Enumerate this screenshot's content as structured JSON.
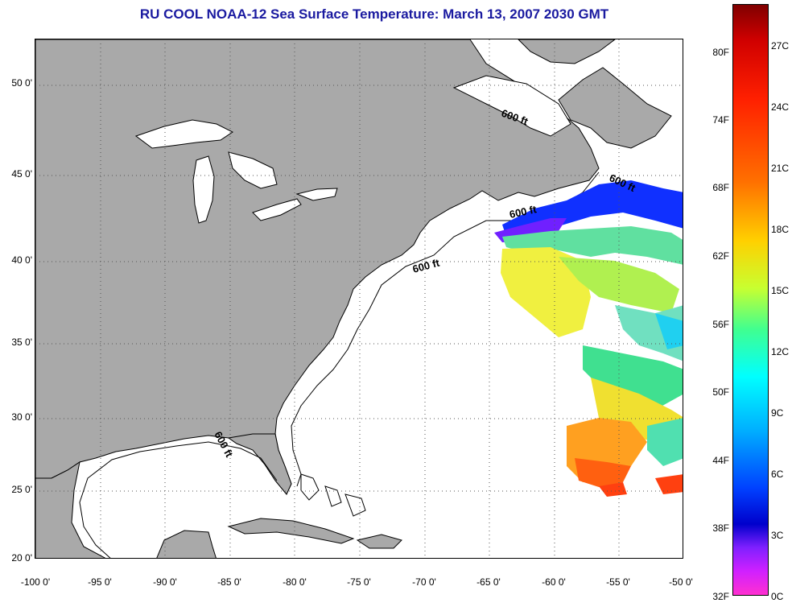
{
  "title": "RU COOL  NOAA-12  Sea Surface Temperature:  March 13, 2007 2030 GMT",
  "map": {
    "lat_labels": [
      "50 0'",
      "45 0'",
      "40 0'",
      "35 0'",
      "30 0'",
      "25 0'",
      "20 0'"
    ],
    "lon_labels": [
      "-100 0'",
      "-95 0'",
      "-90 0'",
      "-85 0'",
      "-80 0'",
      "-75 0'",
      "-70 0'",
      "-65 0'",
      "-60 0'",
      "-55 0'",
      "-50 0'"
    ],
    "contour_labels": [
      "600 ft",
      "600 ft",
      "600 ft",
      "600 ft",
      "600 ft"
    ],
    "colors": {
      "land": "#a9a9a9",
      "water": "#ffffff",
      "grid": "#555555"
    }
  },
  "colorbar": {
    "fahrenheit_labels": [
      "80F",
      "74F",
      "68F",
      "62F",
      "56F",
      "50F",
      "44F",
      "38F",
      "32F"
    ],
    "celsius_labels": [
      "27C",
      "24C",
      "21C",
      "18C",
      "15C",
      "12C",
      "9C",
      "6C",
      "3C",
      "0C"
    ]
  }
}
